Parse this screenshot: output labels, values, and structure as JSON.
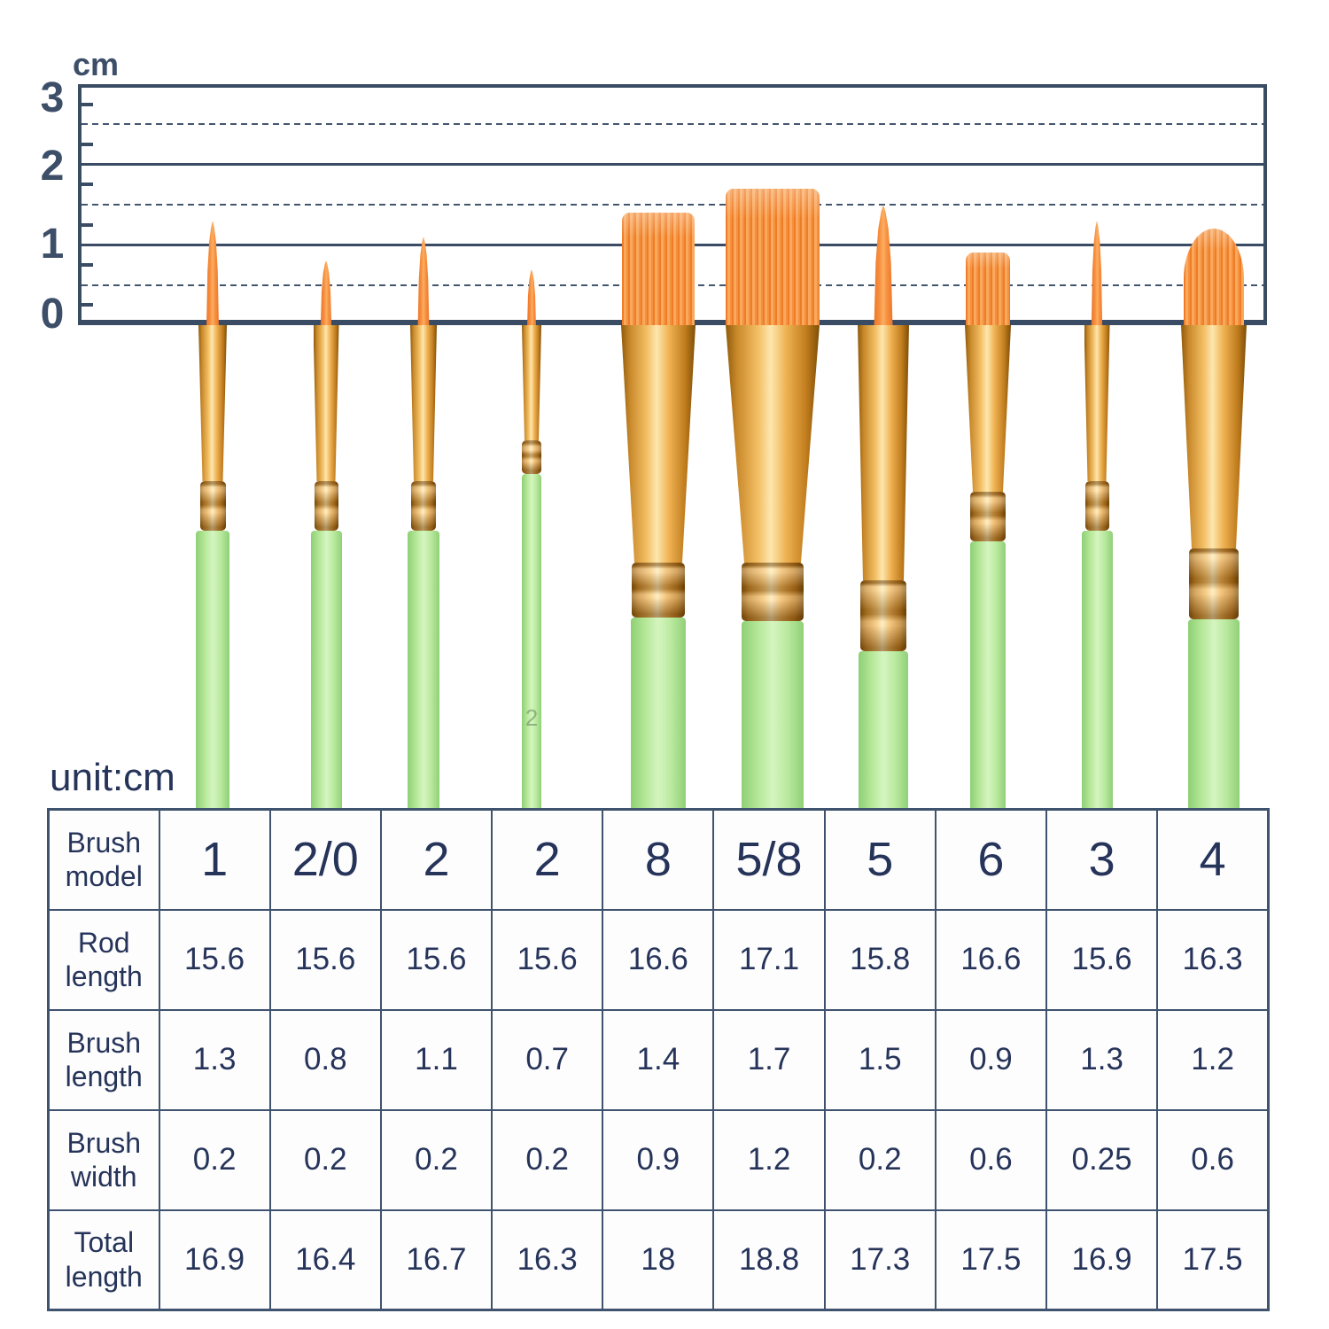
{
  "ruler": {
    "unit_label": "cm",
    "axis_labels": [
      "3",
      "2",
      "1",
      "0"
    ],
    "range_cm": [
      0,
      3
    ],
    "solid_lines_cm": [
      1,
      2
    ],
    "dashed_lines_cm": [
      0.5,
      1.5,
      2.5
    ],
    "tick_lines_cm": [
      0.25,
      0.75,
      1.25,
      1.75,
      2.25,
      2.75
    ]
  },
  "unit_note": "unit:cm",
  "table": {
    "rows": [
      {
        "header": "Brush model",
        "values": [
          "1",
          "2/0",
          "2",
          "2",
          "8",
          "5/8",
          "5",
          "6",
          "3",
          "4"
        ],
        "emphasis": true
      },
      {
        "header": "Rod length",
        "values": [
          15.6,
          15.6,
          15.6,
          15.6,
          16.6,
          17.1,
          15.8,
          16.6,
          15.6,
          16.3
        ]
      },
      {
        "header": "Brush length",
        "values": [
          1.3,
          0.8,
          1.1,
          0.7,
          1.4,
          1.7,
          1.5,
          0.9,
          1.3,
          1.2
        ]
      },
      {
        "header": "Brush width",
        "values": [
          0.2,
          0.2,
          0.2,
          0.2,
          0.9,
          1.2,
          0.2,
          0.6,
          0.25,
          0.6
        ]
      },
      {
        "header": "Total length",
        "values": [
          16.9,
          16.4,
          16.7,
          16.3,
          18,
          18.8,
          17.3,
          17.5,
          16.9,
          17.5
        ]
      }
    ]
  },
  "brushes": [
    {
      "model": "1",
      "shape": "round",
      "brush_length_cm": 1.3,
      "brush_width_cm": 0.2,
      "handle_mark": ""
    },
    {
      "model": "2/0",
      "shape": "round",
      "brush_length_cm": 0.8,
      "brush_width_cm": 0.2,
      "handle_mark": ""
    },
    {
      "model": "2",
      "shape": "round",
      "brush_length_cm": 1.1,
      "brush_width_cm": 0.2,
      "handle_mark": ""
    },
    {
      "model": "2",
      "shape": "round",
      "brush_length_cm": 0.7,
      "brush_width_cm": 0.2,
      "handle_mark": "2"
    },
    {
      "model": "8",
      "shape": "flat",
      "brush_length_cm": 1.4,
      "brush_width_cm": 0.9,
      "handle_mark": ""
    },
    {
      "model": "5/8",
      "shape": "flat",
      "brush_length_cm": 1.7,
      "brush_width_cm": 1.2,
      "handle_mark": ""
    },
    {
      "model": "5",
      "shape": "round",
      "brush_length_cm": 1.5,
      "brush_width_cm": 0.2,
      "handle_mark": ""
    },
    {
      "model": "6",
      "shape": "flat",
      "brush_length_cm": 0.9,
      "brush_width_cm": 0.6,
      "handle_mark": ""
    },
    {
      "model": "3",
      "shape": "round",
      "brush_length_cm": 1.3,
      "brush_width_cm": 0.25,
      "handle_mark": ""
    },
    {
      "model": "4",
      "shape": "filbert",
      "brush_length_cm": 1.2,
      "brush_width_cm": 0.6,
      "handle_mark": ""
    }
  ],
  "colors": {
    "text_navy": "#26345a",
    "line_navy": "#3a4b64",
    "bristle_orange": "#f08433",
    "ferrule_gold": "#e7a93f",
    "handle_green": "#bfeca6",
    "background": "#ffffff"
  }
}
